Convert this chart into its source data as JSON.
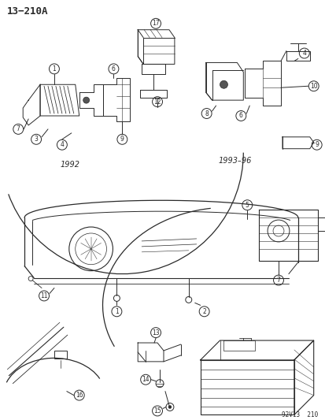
{
  "title": "13−210A",
  "footer": "92V13  210",
  "background_color": "#ffffff",
  "line_color": "#2a2a2a",
  "label_1992": "1992",
  "label_1993_96": "1993–96",
  "figsize": [
    4.14,
    5.33
  ],
  "dpi": 100
}
